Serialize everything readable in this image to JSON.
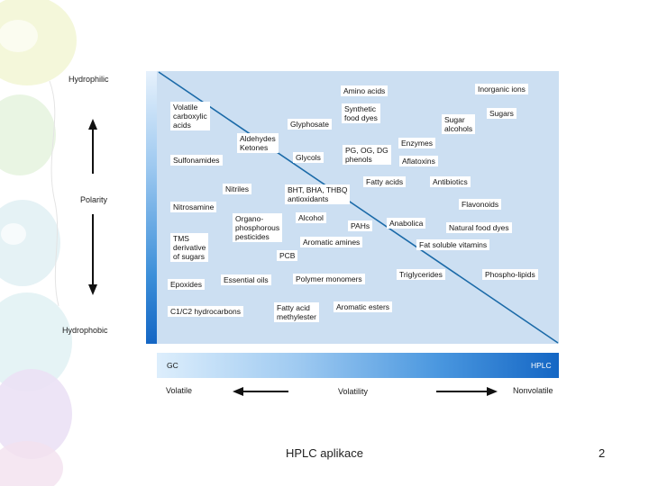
{
  "slide": {
    "footer_title": "HPLC aplikace",
    "page_number": "2"
  },
  "diagram": {
    "polarity_axis": {
      "top": "Hydrophilic",
      "middle": "Polarity",
      "bottom": "Hydrophobic"
    },
    "volatility_axis": {
      "left": "Volatile",
      "middle": "Volatility",
      "right": "Nonvolatile"
    },
    "technique_bar": {
      "left": "GC",
      "right": "HPLC"
    },
    "compounds": [
      "Amino acids",
      "Inorganic ions",
      "Volatile\ncarboxylic\nacids",
      "Synthetic\nfood dyes",
      "Sugars",
      "Glyphosate",
      "Sugar\nalcohols",
      "Aldehydes\nKetones",
      "Enzymes",
      "Sulfonamides",
      "Glycols",
      "PG, OG, DG\nphenols",
      "Aflatoxins",
      "Fatty acids",
      "Antibiotics",
      "Nitriles",
      "BHT, BHA, THBQ\nantioxidants",
      "Flavonoids",
      "Nitrosamine",
      "Organo-\nphosphorous\npesticides",
      "Alcohol",
      "PAHs",
      "Anabolica",
      "Natural food dyes",
      "TMS\nderivative\nof sugars",
      "Aromatic amines",
      "Fat soluble vitamins",
      "PCB",
      "Triglycerides",
      "Phospho-lipids",
      "Essential oils",
      "Polymer monomers",
      "Epoxides",
      "Fatty acid\nmethylester",
      "Aromatic esters",
      "C1/C2 hydrocarbons"
    ]
  },
  "colors": {
    "plot_background": "#ccdff2",
    "diagonal": "#1b6aa8",
    "bar_dark": "#1466c4"
  }
}
